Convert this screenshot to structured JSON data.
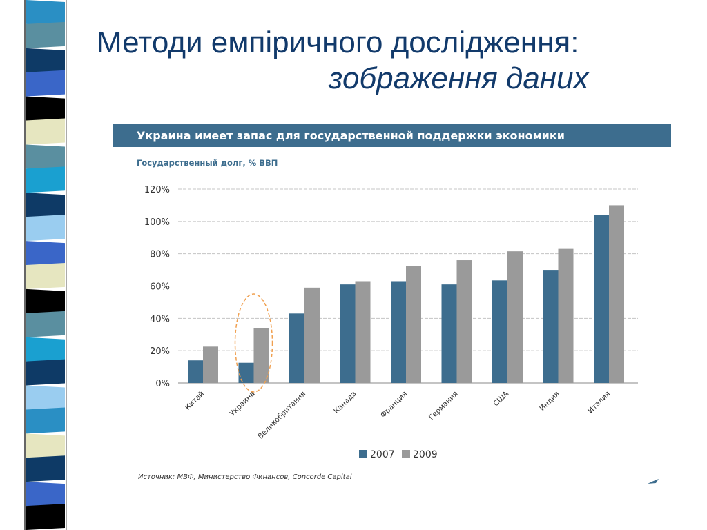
{
  "slide": {
    "title_line1": "Методи емпіричного дослідження:",
    "title_line2": "зображення даних"
  },
  "colors": {
    "title": "#123a6b",
    "banner": "#3d6d8e",
    "series_2007": "#3d6d8e",
    "series_2009": "#9a9a9a",
    "highlight": "#f0a050",
    "stripes": [
      "#2a8fc4",
      "#5a8fa0",
      "#0e3a66",
      "#3a66c8",
      "#000000",
      "#e6e6c0",
      "#5a8fa0",
      "#1aa0d0",
      "#0e3a66",
      "#9acdf0",
      "#3a66c8",
      "#e6e6c0",
      "#000000",
      "#5a8fa0",
      "#1aa0d0",
      "#0e3a66",
      "#9acdf0",
      "#2a8fc4",
      "#e6e6c0",
      "#0e3a66",
      "#3a66c8",
      "#000000"
    ]
  },
  "chart_data": {
    "type": "bar",
    "title": "Украина имеет запас для государственной поддержки экономики",
    "subtitle": "Государственный долг, % ВВП",
    "categories": [
      "Китай",
      "Украина",
      "Великобритания",
      "Канада",
      "Франция",
      "Германия",
      "США",
      "Индия",
      "Италия"
    ],
    "series": [
      {
        "name": "2007",
        "values": [
          14,
          12.5,
          43,
          61,
          63,
          61,
          63.5,
          70,
          104
        ]
      },
      {
        "name": "2009",
        "values": [
          22.5,
          34,
          59,
          63,
          72.5,
          76,
          81.5,
          83,
          110
        ]
      }
    ],
    "ylim": [
      0,
      120
    ],
    "yticks": [
      "0%",
      "20%",
      "40%",
      "60%",
      "80%",
      "100%",
      "120%"
    ],
    "grid": true,
    "legend": "bottom",
    "highlighted_category": "Украина",
    "source": "Источник: МВФ, Министерство Финансов, Concorde Capital"
  }
}
